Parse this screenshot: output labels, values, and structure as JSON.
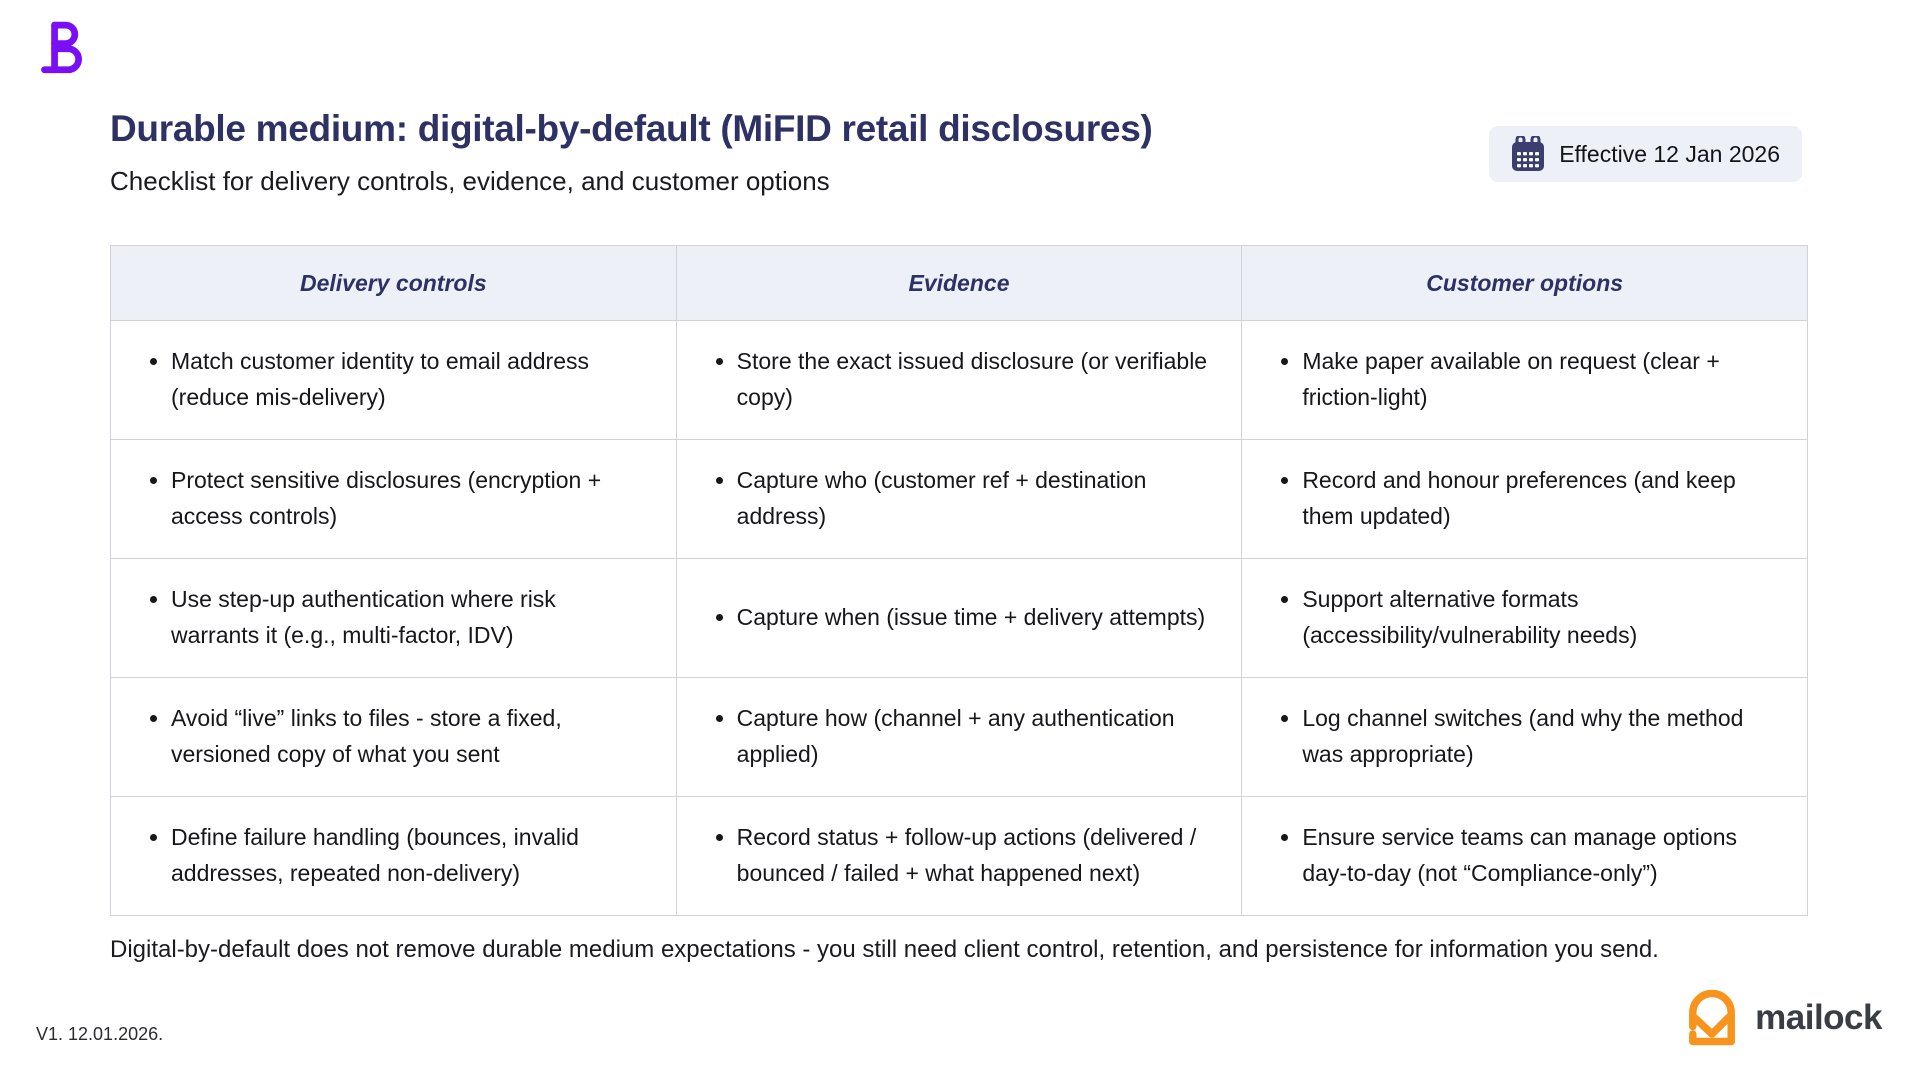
{
  "header": {
    "title": "Durable medium: digital-by-default (MiFID retail disclosures)",
    "subtitle": "Checklist for delivery controls, evidence, and customer options",
    "badge": {
      "icon": "calendar-icon",
      "label": "Effective 12 Jan 2026"
    }
  },
  "table": {
    "columns": [
      "Delivery controls",
      "Evidence",
      "Customer options"
    ],
    "rows": [
      [
        "Match customer identity to email address (reduce mis-delivery)",
        "Store the exact issued disclosure (or verifiable copy)",
        "Make paper available on request (clear + friction-light)"
      ],
      [
        "Protect sensitive disclosures (encryption + access controls)",
        "Capture who (customer ref + destination address)",
        "Record and honour preferences (and keep them updated)"
      ],
      [
        "Use step-up authentication where risk warrants it (e.g., multi-factor, IDV)",
        "Capture when (issue time + delivery attempts)",
        "Support alternative formats (accessibility/vulnerability needs)"
      ],
      [
        "Avoid “live” links to files - store a fixed, versioned copy of what you sent",
        "Capture how (channel + any authentication applied)",
        "Log channel switches (and why the method was appropriate)"
      ],
      [
        "Define failure handling (bounces, invalid addresses, repeated non-delivery)",
        "Record status + follow-up actions (delivered / bounced / failed + what happened next)",
        "Ensure service teams can manage options day-to-day (not “Compliance-only”)"
      ]
    ]
  },
  "footnote": "Digital-by-default does not remove durable medium expectations - you still need client control, retention, and persistence for information you send.",
  "footer": {
    "version": "V1. 12.01.2026.",
    "logo_text": "mailock"
  },
  "colors": {
    "brand_purple": "#7a0ef5",
    "navy": "#2d3163",
    "header_bg": "#edf1f7",
    "badge_bg": "#edf0f6",
    "border": "#d2d3d8",
    "orange": "#f7941d",
    "wordmark_gray": "#3a3d44"
  }
}
